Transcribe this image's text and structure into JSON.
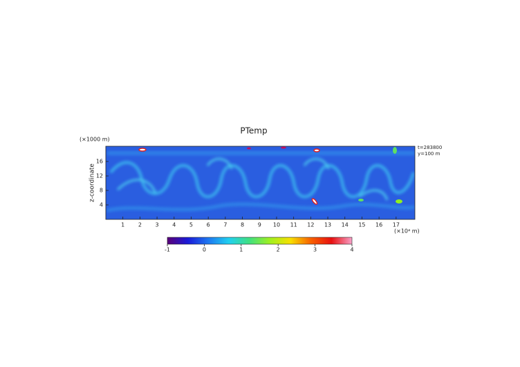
{
  "chart_data": {
    "type": "heatmap",
    "title": "PTemp",
    "y_label": "z-coordinate",
    "y_unit": "(×1000 m)",
    "x_unit": "(×10⁴ m)",
    "annotations": [
      "t=283800",
      "y=100 m"
    ],
    "xlim": [
      0,
      18.1
    ],
    "xticks": [
      1,
      2,
      3,
      4,
      5,
      6,
      7,
      8,
      9,
      10,
      11,
      12,
      13,
      14,
      15,
      16,
      17
    ],
    "ylim": [
      0,
      20.2
    ],
    "yticks": [
      4,
      8,
      12,
      16
    ],
    "colorbar": {
      "lim": [
        -1,
        4
      ],
      "ticks": [
        -1,
        0,
        1,
        2,
        3,
        4
      ],
      "colors": [
        "#5a0078",
        "#1a1ad8",
        "#1e78f0",
        "#20d0f0",
        "#40e080",
        "#a0f020",
        "#f8e000",
        "#f86000",
        "#e81010",
        "#f8a0c8"
      ]
    }
  }
}
